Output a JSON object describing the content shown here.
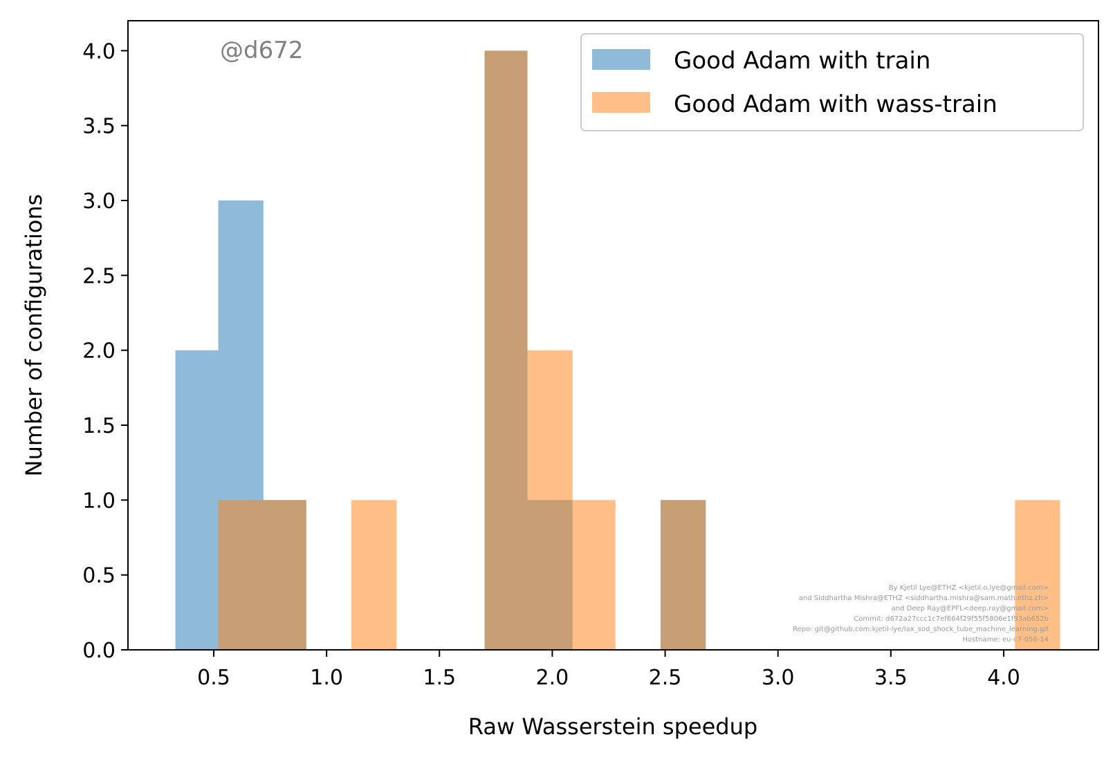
{
  "chart_data": {
    "type": "bar",
    "xlabel": "Raw Wasserstein speedup",
    "ylabel": "Number of configurations",
    "xlim": [
      0.12,
      4.42
    ],
    "ylim": [
      0,
      4.2
    ],
    "xticks": [
      "0.5",
      "1.0",
      "1.5",
      "2.0",
      "2.5",
      "3.0",
      "3.5",
      "4.0"
    ],
    "yticks": [
      "0.0",
      "0.5",
      "1.0",
      "1.5",
      "2.0",
      "2.5",
      "3.0",
      "3.5",
      "4.0"
    ],
    "legend_position": "top-right",
    "grid": false,
    "series": [
      {
        "name": "Good Adam with train",
        "color": "#1f77b4",
        "bins": [
          {
            "x0": 0.33,
            "x1": 0.52,
            "count": 2
          },
          {
            "x0": 0.52,
            "x1": 0.72,
            "count": 3
          },
          {
            "x0": 0.72,
            "x1": 0.91,
            "count": 1
          },
          {
            "x0": 1.7,
            "x1": 1.89,
            "count": 4
          },
          {
            "x0": 1.89,
            "x1": 2.09,
            "count": 1
          },
          {
            "x0": 2.48,
            "x1": 2.68,
            "count": 1
          }
        ]
      },
      {
        "name": "Good Adam with wass-train",
        "color": "#ff7f0e",
        "bins": [
          {
            "x0": 0.52,
            "x1": 0.72,
            "count": 1
          },
          {
            "x0": 0.72,
            "x1": 0.91,
            "count": 1
          },
          {
            "x0": 1.11,
            "x1": 1.31,
            "count": 1
          },
          {
            "x0": 1.7,
            "x1": 1.89,
            "count": 4
          },
          {
            "x0": 1.89,
            "x1": 2.09,
            "count": 2
          },
          {
            "x0": 2.09,
            "x1": 2.28,
            "count": 1
          },
          {
            "x0": 2.48,
            "x1": 2.68,
            "count": 1
          },
          {
            "x0": 4.05,
            "x1": 4.25,
            "count": 1
          }
        ]
      }
    ]
  },
  "watermark": "@d672",
  "credits": [
    "By Kjetil Lye@ETHZ <kjetil.o.lye@gmail.com>",
    "and Siddhartha Mishra@ETHZ <siddhartha.mishra@sam.math.ethz.ch>",
    "and Deep Ray@EPFL<deep.ray@gmail.com>",
    "Commit: d672a27ccc1c7ef664f29f55f5806e1f93ab652b",
    "Repo: git@github.com:kjetil-lye/lax_sod_shock_tube_machine_learning.git",
    "Hostname: eu-c7-056-14"
  ]
}
